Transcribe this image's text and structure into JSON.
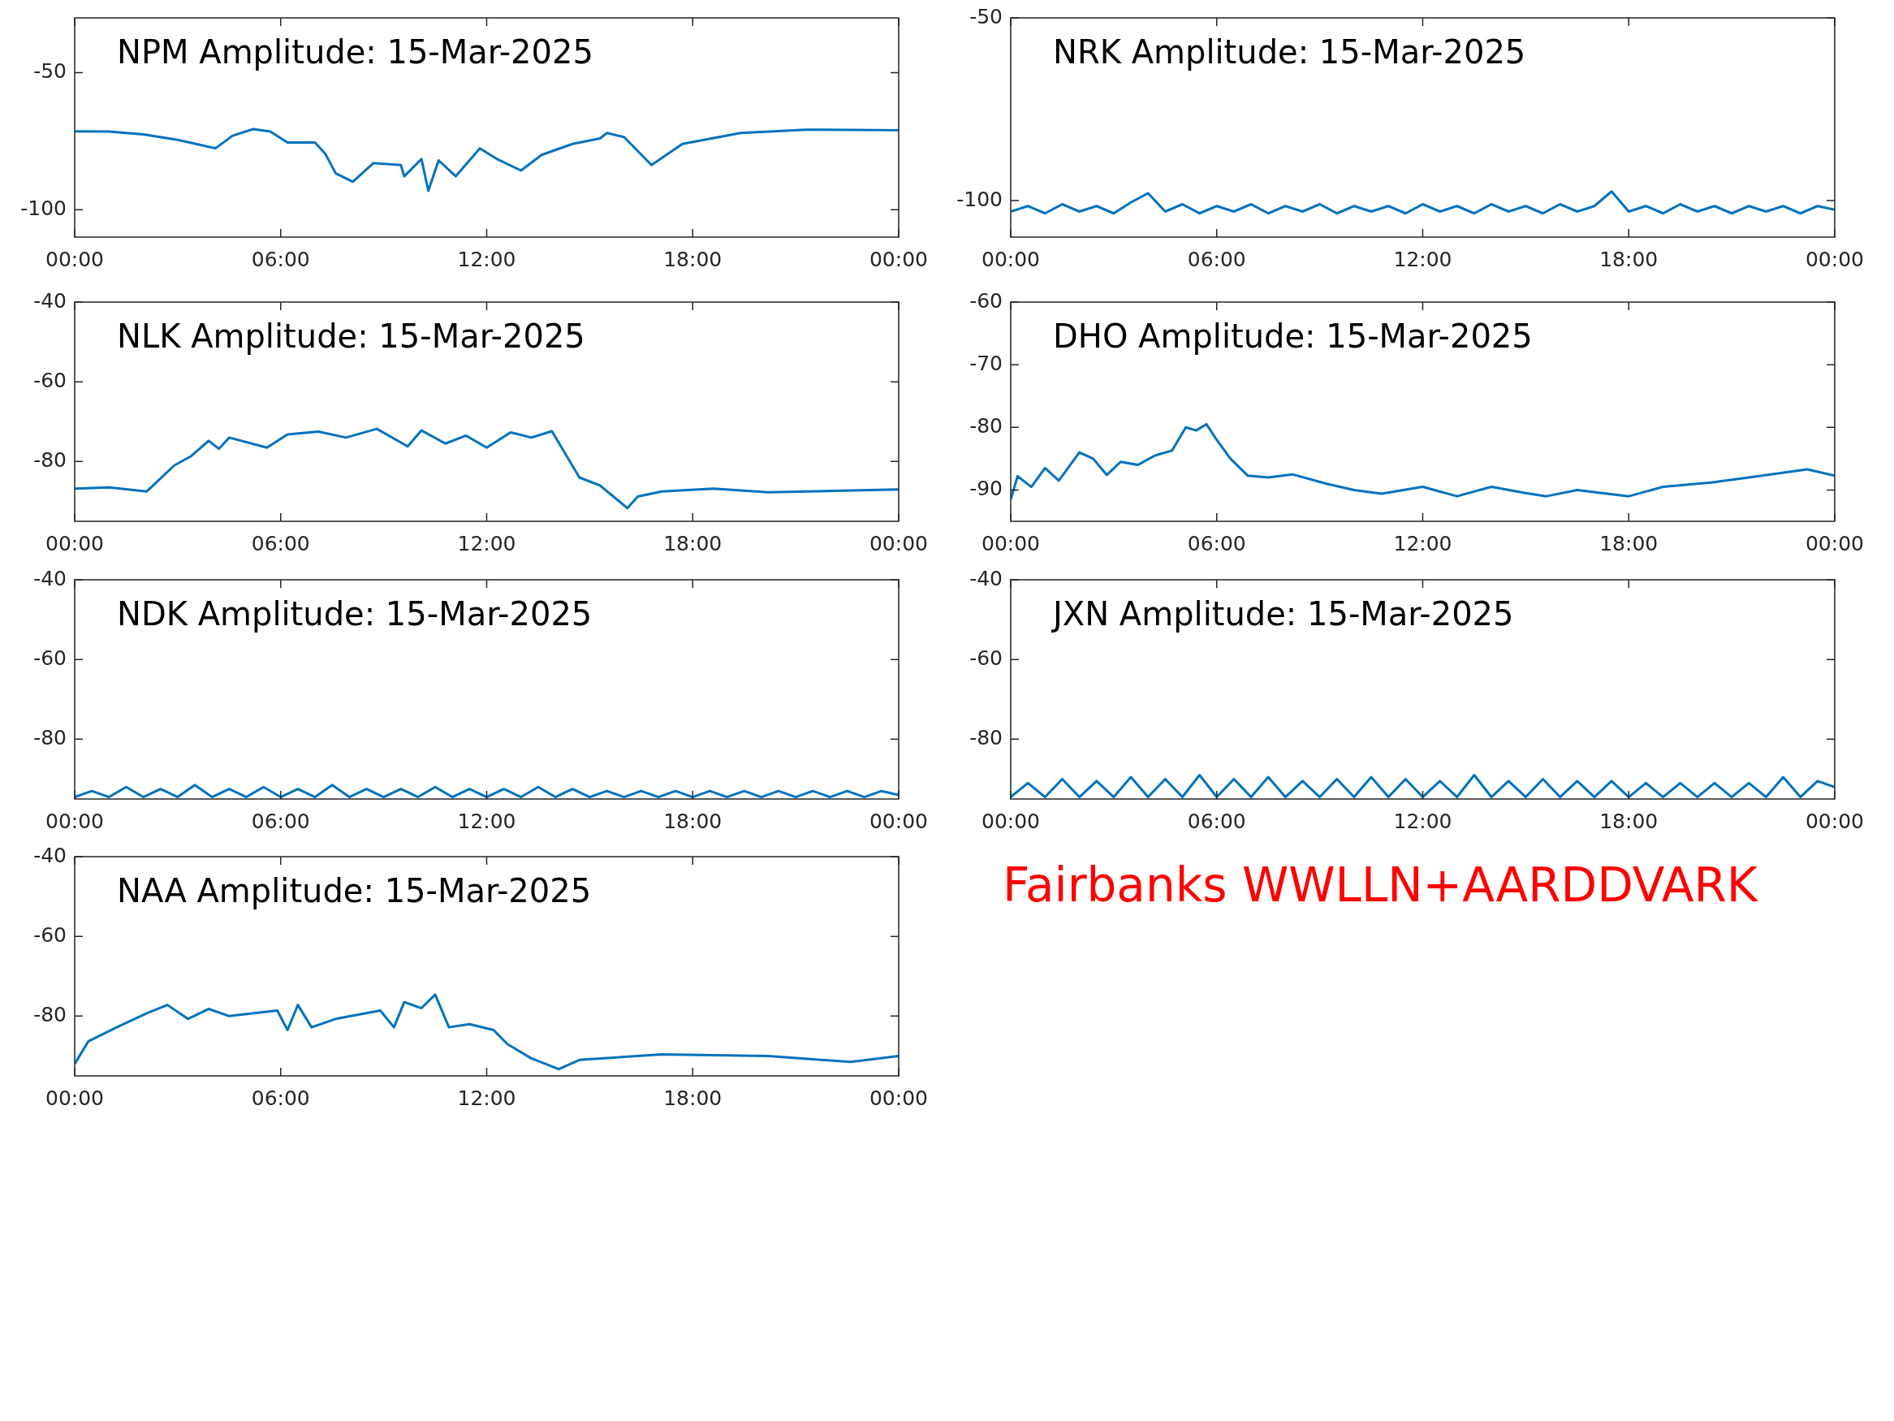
{
  "chart_data": [
    {
      "type": "line",
      "title": "NPM Amplitude: 15-Mar-2025",
      "color": "#0072bd",
      "xlim": [
        0,
        24
      ],
      "xticks": [
        {
          "value": 0,
          "label": "00:00"
        },
        {
          "value": 6,
          "label": "06:00"
        },
        {
          "value": 12,
          "label": "12:00"
        },
        {
          "value": 18,
          "label": "18:00"
        },
        {
          "value": 24,
          "label": "00:00"
        }
      ],
      "ylim": [
        -110,
        -30
      ],
      "yticks": [
        -100,
        -50
      ],
      "x": [
        0,
        1,
        2,
        3,
        4.1,
        4.6,
        5.2,
        5.7,
        6.2,
        7,
        7.3,
        7.6,
        8.1,
        8.7,
        9.5,
        9.6,
        10.1,
        10.3,
        10.6,
        11.1,
        11.8,
        12.3,
        13,
        13.6,
        14.5,
        15.3,
        15.5,
        16,
        16.8,
        17.7,
        19.4,
        21.3,
        24
      ],
      "values": [
        -71.4,
        -71.5,
        -72.5,
        -74.5,
        -77.6,
        -73,
        -70.6,
        -71.5,
        -75.5,
        -75.5,
        -79.6,
        -86.7,
        -89.8,
        -83,
        -83.7,
        -87.8,
        -81.5,
        -93.1,
        -82,
        -87.8,
        -77.6,
        -81.5,
        -85.7,
        -80,
        -76,
        -74,
        -72,
        -73.5,
        -83.7,
        -76,
        -72,
        -70.8,
        -71
      ]
    },
    {
      "type": "line",
      "title": "NRK Amplitude: 15-Mar-2025",
      "color": "#0072bd",
      "xlim": [
        0,
        24
      ],
      "xticks": [
        {
          "value": 0,
          "label": "00:00"
        },
        {
          "value": 6,
          "label": "06:00"
        },
        {
          "value": 12,
          "label": "12:00"
        },
        {
          "value": 18,
          "label": "18:00"
        },
        {
          "value": 24,
          "label": "00:00"
        }
      ],
      "ylim": [
        -110,
        -50
      ],
      "yticks": [
        -100,
        -50
      ],
      "x": [
        0,
        0.5,
        1,
        1.5,
        2,
        2.5,
        3,
        3.5,
        4,
        4.5,
        5,
        5.5,
        6,
        6.5,
        7,
        7.5,
        8,
        8.5,
        9,
        9.5,
        10,
        10.5,
        11,
        11.5,
        12,
        12.5,
        13,
        13.5,
        14,
        14.5,
        15,
        15.5,
        16,
        16.5,
        17,
        17.5,
        18,
        18.5,
        19,
        19.5,
        20,
        20.5,
        21,
        21.5,
        22,
        22.5,
        23,
        23.5,
        24
      ],
      "values": [
        -103,
        -101.5,
        -103.5,
        -101,
        -103,
        -101.5,
        -103.5,
        -100.5,
        -98,
        -103,
        -101,
        -103.5,
        -101.5,
        -103,
        -101,
        -103.5,
        -101.5,
        -103,
        -101,
        -103.5,
        -101.5,
        -103,
        -101.5,
        -103.5,
        -101,
        -103,
        -101.5,
        -103.5,
        -101,
        -103,
        -101.5,
        -103.5,
        -101,
        -103,
        -101.5,
        -97.5,
        -103,
        -101.5,
        -103.5,
        -101,
        -103,
        -101.5,
        -103.5,
        -101.5,
        -103,
        -101.5,
        -103.5,
        -101.5,
        -102.5
      ]
    },
    {
      "type": "line",
      "title": "NLK Amplitude: 15-Mar-2025",
      "color": "#0072bd",
      "xlim": [
        0,
        24
      ],
      "xticks": [
        {
          "value": 0,
          "label": "00:00"
        },
        {
          "value": 6,
          "label": "06:00"
        },
        {
          "value": 12,
          "label": "12:00"
        },
        {
          "value": 18,
          "label": "18:00"
        },
        {
          "value": 24,
          "label": "00:00"
        }
      ],
      "ylim": [
        -95,
        -40
      ],
      "yticks": [
        -80,
        -60,
        -40
      ],
      "x": [
        0,
        1,
        2.1,
        2.9,
        3.4,
        3.9,
        4.2,
        4.5,
        5.6,
        6.2,
        7.1,
        7.9,
        8.8,
        9.7,
        10.1,
        10.8,
        11.4,
        12,
        12.7,
        13.3,
        13.9,
        14.7,
        15.3,
        16.1,
        16.4,
        17.1,
        18.6,
        20.2,
        24
      ],
      "values": [
        -86.8,
        -86.5,
        -87.5,
        -81,
        -78.6,
        -74.8,
        -76.8,
        -74,
        -76.5,
        -73.2,
        -72.5,
        -74,
        -71.8,
        -76.2,
        -72.2,
        -75.5,
        -73.5,
        -76.5,
        -72.7,
        -74,
        -72.4,
        -84,
        -86,
        -91.7,
        -88.8,
        -87.5,
        -86.8,
        -87.7,
        -87
      ]
    },
    {
      "type": "line",
      "title": "DHO Amplitude: 15-Mar-2025",
      "color": "#0072bd",
      "xlim": [
        0,
        24
      ],
      "xticks": [
        {
          "value": 0,
          "label": "00:00"
        },
        {
          "value": 6,
          "label": "06:00"
        },
        {
          "value": 12,
          "label": "12:00"
        },
        {
          "value": 18,
          "label": "18:00"
        },
        {
          "value": 24,
          "label": "00:00"
        }
      ],
      "ylim": [
        -95,
        -60
      ],
      "yticks": [
        -90,
        -80,
        -70,
        -60
      ],
      "x": [
        0,
        0.2,
        0.6,
        1,
        1.4,
        2,
        2.4,
        2.8,
        3.2,
        3.7,
        4.2,
        4.7,
        5.1,
        5.4,
        5.7,
        6,
        6.4,
        6.9,
        7.5,
        8.2,
        9.2,
        10,
        10.8,
        12,
        13,
        14,
        15,
        15.6,
        16.5,
        18,
        19,
        20.4,
        21.5,
        23.2,
        24
      ],
      "values": [
        -91.5,
        -87.8,
        -89.5,
        -86.5,
        -88.5,
        -84,
        -85,
        -87.6,
        -85.5,
        -86,
        -84.5,
        -83.7,
        -80,
        -80.5,
        -79.5,
        -82,
        -85,
        -87.7,
        -88,
        -87.5,
        -89,
        -90,
        -90.6,
        -89.5,
        -91,
        -89.5,
        -90.5,
        -91,
        -90,
        -91,
        -89.5,
        -88.8,
        -88,
        -86.7,
        -87.7
      ]
    },
    {
      "type": "line",
      "title": "NDK Amplitude: 15-Mar-2025",
      "color": "#0072bd",
      "xlim": [
        0,
        24
      ],
      "xticks": [
        {
          "value": 0,
          "label": "00:00"
        },
        {
          "value": 6,
          "label": "06:00"
        },
        {
          "value": 12,
          "label": "12:00"
        },
        {
          "value": 18,
          "label": "18:00"
        },
        {
          "value": 24,
          "label": "00:00"
        }
      ],
      "ylim": [
        -95,
        -40
      ],
      "yticks": [
        -80,
        -60,
        -40
      ],
      "x": [
        0,
        0.5,
        1,
        1.5,
        2,
        2.5,
        3,
        3.5,
        4,
        4.5,
        5,
        5.5,
        6,
        6.5,
        7,
        7.5,
        8,
        8.5,
        9,
        9.5,
        10,
        10.5,
        11,
        11.5,
        12,
        12.5,
        13,
        13.5,
        14,
        14.5,
        15,
        15.5,
        16,
        16.5,
        17,
        17.5,
        18,
        18.5,
        19,
        19.5,
        20,
        20.5,
        21,
        21.5,
        22,
        22.5,
        23,
        23.5,
        24
      ],
      "values": [
        -94.5,
        -93,
        -94.5,
        -92,
        -94.5,
        -92.5,
        -94.5,
        -91.5,
        -94.5,
        -92.5,
        -94.5,
        -92,
        -94.5,
        -92.5,
        -94.5,
        -91.5,
        -94.5,
        -92.5,
        -94.5,
        -92.5,
        -94.5,
        -92,
        -94.5,
        -92.5,
        -94.5,
        -92.5,
        -94.5,
        -92,
        -94.5,
        -92.5,
        -94.5,
        -93,
        -94.5,
        -93,
        -94.5,
        -93,
        -94.5,
        -93,
        -94.5,
        -93,
        -94.5,
        -93,
        -94.5,
        -93,
        -94.5,
        -93,
        -94.5,
        -93,
        -94
      ]
    },
    {
      "type": "line",
      "title": "JXN Amplitude: 15-Mar-2025",
      "color": "#0072bd",
      "xlim": [
        0,
        24
      ],
      "xticks": [
        {
          "value": 0,
          "label": "00:00"
        },
        {
          "value": 6,
          "label": "06:00"
        },
        {
          "value": 12,
          "label": "12:00"
        },
        {
          "value": 18,
          "label": "18:00"
        },
        {
          "value": 24,
          "label": "00:00"
        }
      ],
      "ylim": [
        -95,
        -40
      ],
      "yticks": [
        -80,
        -60,
        -40
      ],
      "x": [
        0,
        0.5,
        1,
        1.5,
        2,
        2.5,
        3,
        3.5,
        4,
        4.5,
        5,
        5.5,
        6,
        6.5,
        7,
        7.5,
        8,
        8.5,
        9,
        9.5,
        10,
        10.5,
        11,
        11.5,
        12,
        12.5,
        13,
        13.5,
        14,
        14.5,
        15,
        15.5,
        16,
        16.5,
        17,
        17.5,
        18,
        18.5,
        19,
        19.5,
        20,
        20.5,
        21,
        21.5,
        22,
        22.5,
        23,
        23.5,
        24
      ],
      "values": [
        -94.5,
        -91,
        -94.5,
        -90,
        -94.5,
        -90.5,
        -94.5,
        -89.5,
        -94.5,
        -90,
        -94.5,
        -89,
        -94.5,
        -90,
        -94.5,
        -89.5,
        -94.5,
        -90.5,
        -94.5,
        -90,
        -94.5,
        -89.5,
        -94.5,
        -90,
        -94.5,
        -90.5,
        -94.5,
        -89,
        -94.5,
        -90.5,
        -94.5,
        -90,
        -94.5,
        -90.5,
        -94.5,
        -90.5,
        -94.5,
        -91,
        -94.5,
        -91,
        -94.5,
        -91,
        -94.5,
        -91,
        -94.5,
        -89.5,
        -94.5,
        -90.5,
        -92
      ]
    },
    {
      "type": "line",
      "title": "NAA Amplitude: 15-Mar-2025",
      "color": "#0072bd",
      "xlim": [
        0,
        24
      ],
      "xticks": [
        {
          "value": 0,
          "label": "00:00"
        },
        {
          "value": 6,
          "label": "06:00"
        },
        {
          "value": 12,
          "label": "12:00"
        },
        {
          "value": 18,
          "label": "18:00"
        },
        {
          "value": 24,
          "label": "00:00"
        }
      ],
      "ylim": [
        -95,
        -40
      ],
      "yticks": [
        -80,
        -60,
        -40
      ],
      "x": [
        0,
        0.4,
        1.3,
        2.1,
        2.7,
        3.3,
        3.9,
        4.5,
        5.9,
        6.2,
        6.5,
        6.9,
        7.6,
        8.9,
        9.3,
        9.6,
        10.1,
        10.5,
        10.9,
        11.5,
        12.2,
        12.6,
        13.3,
        14.1,
        14.7,
        17.1,
        20.2,
        22.6,
        24
      ],
      "values": [
        -92,
        -86.3,
        -82.5,
        -79.3,
        -77.2,
        -80.7,
        -78.2,
        -80,
        -78.6,
        -83.5,
        -77.2,
        -82.8,
        -80.7,
        -78.6,
        -82.8,
        -76.5,
        -78,
        -74.6,
        -82.8,
        -82,
        -83.5,
        -87,
        -90.6,
        -93.3,
        -91,
        -89.6,
        -90,
        -91.5,
        -90
      ]
    },
    {
      "type": "other",
      "title": "Fairbanks WWLLN+AARDDVARK",
      "color": "#ff0000"
    }
  ]
}
